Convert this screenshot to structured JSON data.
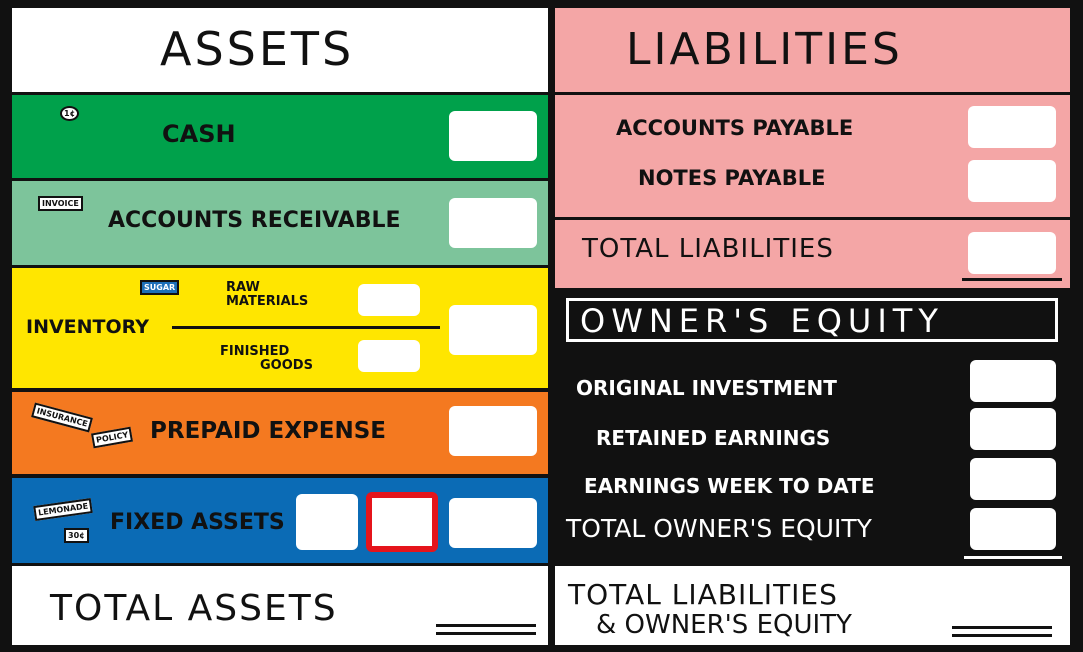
{
  "assets": {
    "title": "ASSETS",
    "cash": {
      "label": "CASH",
      "icon": "1¢"
    },
    "accounts_receivable": {
      "label": "ACCOUNTS RECEIVABLE",
      "icon": "INVOICE"
    },
    "inventory": {
      "label": "INVENTORY",
      "raw_materials": [
        "RAW",
        "MATERIALS"
      ],
      "finished_goods": [
        "FINISHED",
        "GOODS"
      ],
      "icon": "SUGAR"
    },
    "prepaid_expense": {
      "label": "PREPAID EXPENSE",
      "icon": [
        "INSURANCE",
        "POLICY"
      ]
    },
    "fixed_assets": {
      "label": "FIXED ASSETS",
      "icon": [
        "LEMONADE",
        "30¢"
      ]
    },
    "total": "TOTAL ASSETS"
  },
  "liabilities": {
    "title": "LIABILITIES",
    "accounts_payable": "ACCOUNTS PAYABLE",
    "notes_payable": "NOTES PAYABLE",
    "total": "TOTAL LIABILITIES"
  },
  "owners_equity": {
    "title": "OWNER'S EQUITY",
    "original_investment": "ORIGINAL INVESTMENT",
    "retained_earnings": "RETAINED EARNINGS",
    "earnings_week_to_date": "EARNINGS WEEK TO DATE",
    "total": "TOTAL OWNER'S EQUITY"
  },
  "grand_total": [
    "TOTAL LIABILITIES",
    "& OWNER'S EQUITY"
  ]
}
